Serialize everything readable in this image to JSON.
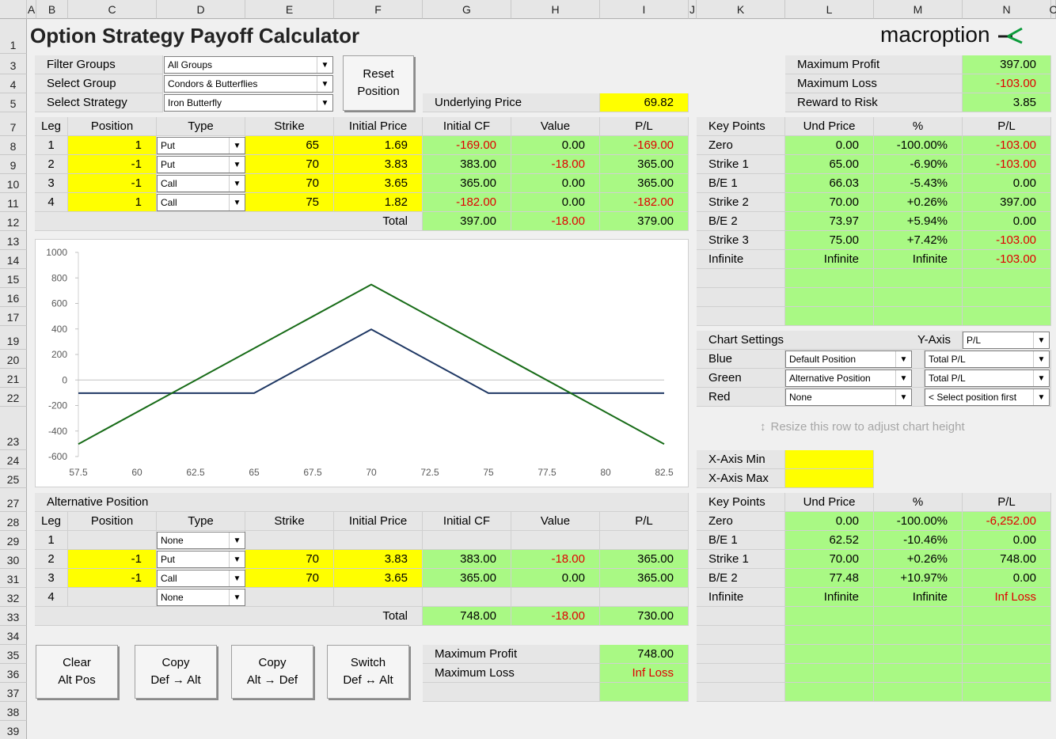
{
  "columns": [
    "A",
    "B",
    "C",
    "D",
    "E",
    "F",
    "G",
    "H",
    "I",
    "J",
    "K",
    "L",
    "M",
    "N",
    "C"
  ],
  "rows": [
    "1",
    "3",
    "4",
    "5",
    "7",
    "8",
    "9",
    "10",
    "11",
    "12",
    "13",
    "14",
    "15",
    "16",
    "17",
    "19",
    "20",
    "21",
    "22",
    "23",
    "24",
    "25",
    "27",
    "28",
    "29",
    "30",
    "31",
    "32",
    "33",
    "34",
    "35",
    "36",
    "37",
    "38",
    "39"
  ],
  "title": "Option Strategy Payoff Calculator",
  "brand": "macroption",
  "colors": {
    "green": "#a9f984",
    "yellow": "#ffff00",
    "red": "#e00000",
    "blue_line": "#1f3864",
    "green_line": "#176b17"
  },
  "filters": {
    "filter_groups_label": "Filter Groups",
    "filter_groups_value": "All Groups",
    "select_group_label": "Select Group",
    "select_group_value": "Condors & Butterflies",
    "select_strategy_label": "Select Strategy",
    "select_strategy_value": "Iron Butterfly"
  },
  "reset_button": {
    "line1": "Reset",
    "line2": "Position"
  },
  "underlying": {
    "label": "Underlying Price",
    "value": "69.82"
  },
  "summary": {
    "max_profit_label": "Maximum Profit",
    "max_profit": "397.00",
    "max_loss_label": "Maximum Loss",
    "max_loss": "-103.00",
    "reward_risk_label": "Reward to Risk",
    "reward_risk": "3.85"
  },
  "legs_header": [
    "Leg",
    "Position",
    "Type",
    "Strike",
    "Initial Price",
    "Initial CF",
    "Value",
    "P/L"
  ],
  "legs": [
    {
      "leg": "1",
      "position": "1",
      "type": "Put",
      "strike": "65",
      "price": "1.69",
      "cf": "-169.00",
      "value": "0.00",
      "pl": "-169.00"
    },
    {
      "leg": "2",
      "position": "-1",
      "type": "Put",
      "strike": "70",
      "price": "3.83",
      "cf": "383.00",
      "value": "-18.00",
      "pl": "365.00"
    },
    {
      "leg": "3",
      "position": "-1",
      "type": "Call",
      "strike": "70",
      "price": "3.65",
      "cf": "365.00",
      "value": "0.00",
      "pl": "365.00"
    },
    {
      "leg": "4",
      "position": "1",
      "type": "Call",
      "strike": "75",
      "price": "1.82",
      "cf": "-182.00",
      "value": "0.00",
      "pl": "-182.00"
    }
  ],
  "legs_total": {
    "label": "Total",
    "cf": "397.00",
    "value": "-18.00",
    "pl": "379.00"
  },
  "key_points_header": [
    "Key Points",
    "Und Price",
    "%",
    "P/L"
  ],
  "key_points": [
    {
      "name": "Zero",
      "price": "0.00",
      "pct": "-100.00%",
      "pl": "-103.00"
    },
    {
      "name": "Strike 1",
      "price": "65.00",
      "pct": "-6.90%",
      "pl": "-103.00"
    },
    {
      "name": "B/E 1",
      "price": "66.03",
      "pct": "-5.43%",
      "pl": "0.00"
    },
    {
      "name": "Strike 2",
      "price": "70.00",
      "pct": "+0.26%",
      "pl": "397.00"
    },
    {
      "name": "B/E 2",
      "price": "73.97",
      "pct": "+5.94%",
      "pl": "0.00"
    },
    {
      "name": "Strike 3",
      "price": "75.00",
      "pct": "+7.42%",
      "pl": "-103.00"
    },
    {
      "name": "Infinite",
      "price": "Infinite",
      "pct": "Infinite",
      "pl": "-103.00"
    }
  ],
  "chart_settings": {
    "title": "Chart Settings",
    "yaxis_label": "Y-Axis",
    "yaxis_value": "P/L",
    "rows": [
      {
        "label": "Blue",
        "position": "Default Position",
        "metric": "Total P/L"
      },
      {
        "label": "Green",
        "position": "Alternative Position",
        "metric": "Total P/L"
      },
      {
        "label": "Red",
        "position": "None",
        "metric": "< Select position first"
      }
    ],
    "resize_hint": "Resize this row to adjust chart height",
    "xmin_label": "X-Axis Min",
    "xmax_label": "X-Axis Max"
  },
  "alt": {
    "title": "Alternative Position",
    "legs": [
      {
        "leg": "1",
        "position": "",
        "type": "None",
        "strike": "",
        "price": "",
        "cf": "",
        "value": "",
        "pl": ""
      },
      {
        "leg": "2",
        "position": "-1",
        "type": "Put",
        "strike": "70",
        "price": "3.83",
        "cf": "383.00",
        "value": "-18.00",
        "pl": "365.00"
      },
      {
        "leg": "3",
        "position": "-1",
        "type": "Call",
        "strike": "70",
        "price": "3.65",
        "cf": "365.00",
        "value": "0.00",
        "pl": "365.00"
      },
      {
        "leg": "4",
        "position": "",
        "type": "None",
        "strike": "",
        "price": "",
        "cf": "",
        "value": "",
        "pl": ""
      }
    ],
    "total": {
      "label": "Total",
      "cf": "748.00",
      "value": "-18.00",
      "pl": "730.00"
    },
    "key_points": [
      {
        "name": "Zero",
        "price": "0.00",
        "pct": "-100.00%",
        "pl": "-6,252.00"
      },
      {
        "name": "B/E 1",
        "price": "62.52",
        "pct": "-10.46%",
        "pl": "0.00"
      },
      {
        "name": "Strike 1",
        "price": "70.00",
        "pct": "+0.26%",
        "pl": "748.00"
      },
      {
        "name": "B/E 2",
        "price": "77.48",
        "pct": "+10.97%",
        "pl": "0.00"
      },
      {
        "name": "Infinite",
        "price": "Infinite",
        "pct": "Infinite",
        "pl": "Inf Loss"
      }
    ],
    "max_profit_label": "Maximum Profit",
    "max_profit": "748.00",
    "max_loss_label": "Maximum Loss",
    "max_loss": "Inf Loss"
  },
  "buttons": [
    {
      "line1": "Clear",
      "line2": "Alt Pos"
    },
    {
      "line1": "Copy",
      "line2": "Def → Alt"
    },
    {
      "line1": "Copy",
      "line2": "Alt → Def"
    },
    {
      "line1": "Switch",
      "line2": "Def ↔ Alt"
    }
  ],
  "chart_data": {
    "type": "line",
    "x_ticks": [
      "57.5",
      "60",
      "62.5",
      "65",
      "67.5",
      "70",
      "72.5",
      "75",
      "77.5",
      "80",
      "82.5"
    ],
    "y_ticks": [
      "1000",
      "800",
      "600",
      "400",
      "200",
      "0",
      "-200",
      "-400",
      "-600"
    ],
    "xlim": [
      57.5,
      82.5
    ],
    "ylim": [
      -600,
      1000
    ],
    "series": [
      {
        "color": "#1f3864",
        "x": [
          57.5,
          65,
          70,
          75,
          82.5
        ],
        "y": [
          -103,
          -103,
          397,
          -103,
          -103
        ]
      },
      {
        "color": "#176b17",
        "x": [
          57.5,
          70,
          82.5
        ],
        "y": [
          -502,
          748,
          -502
        ]
      }
    ]
  }
}
